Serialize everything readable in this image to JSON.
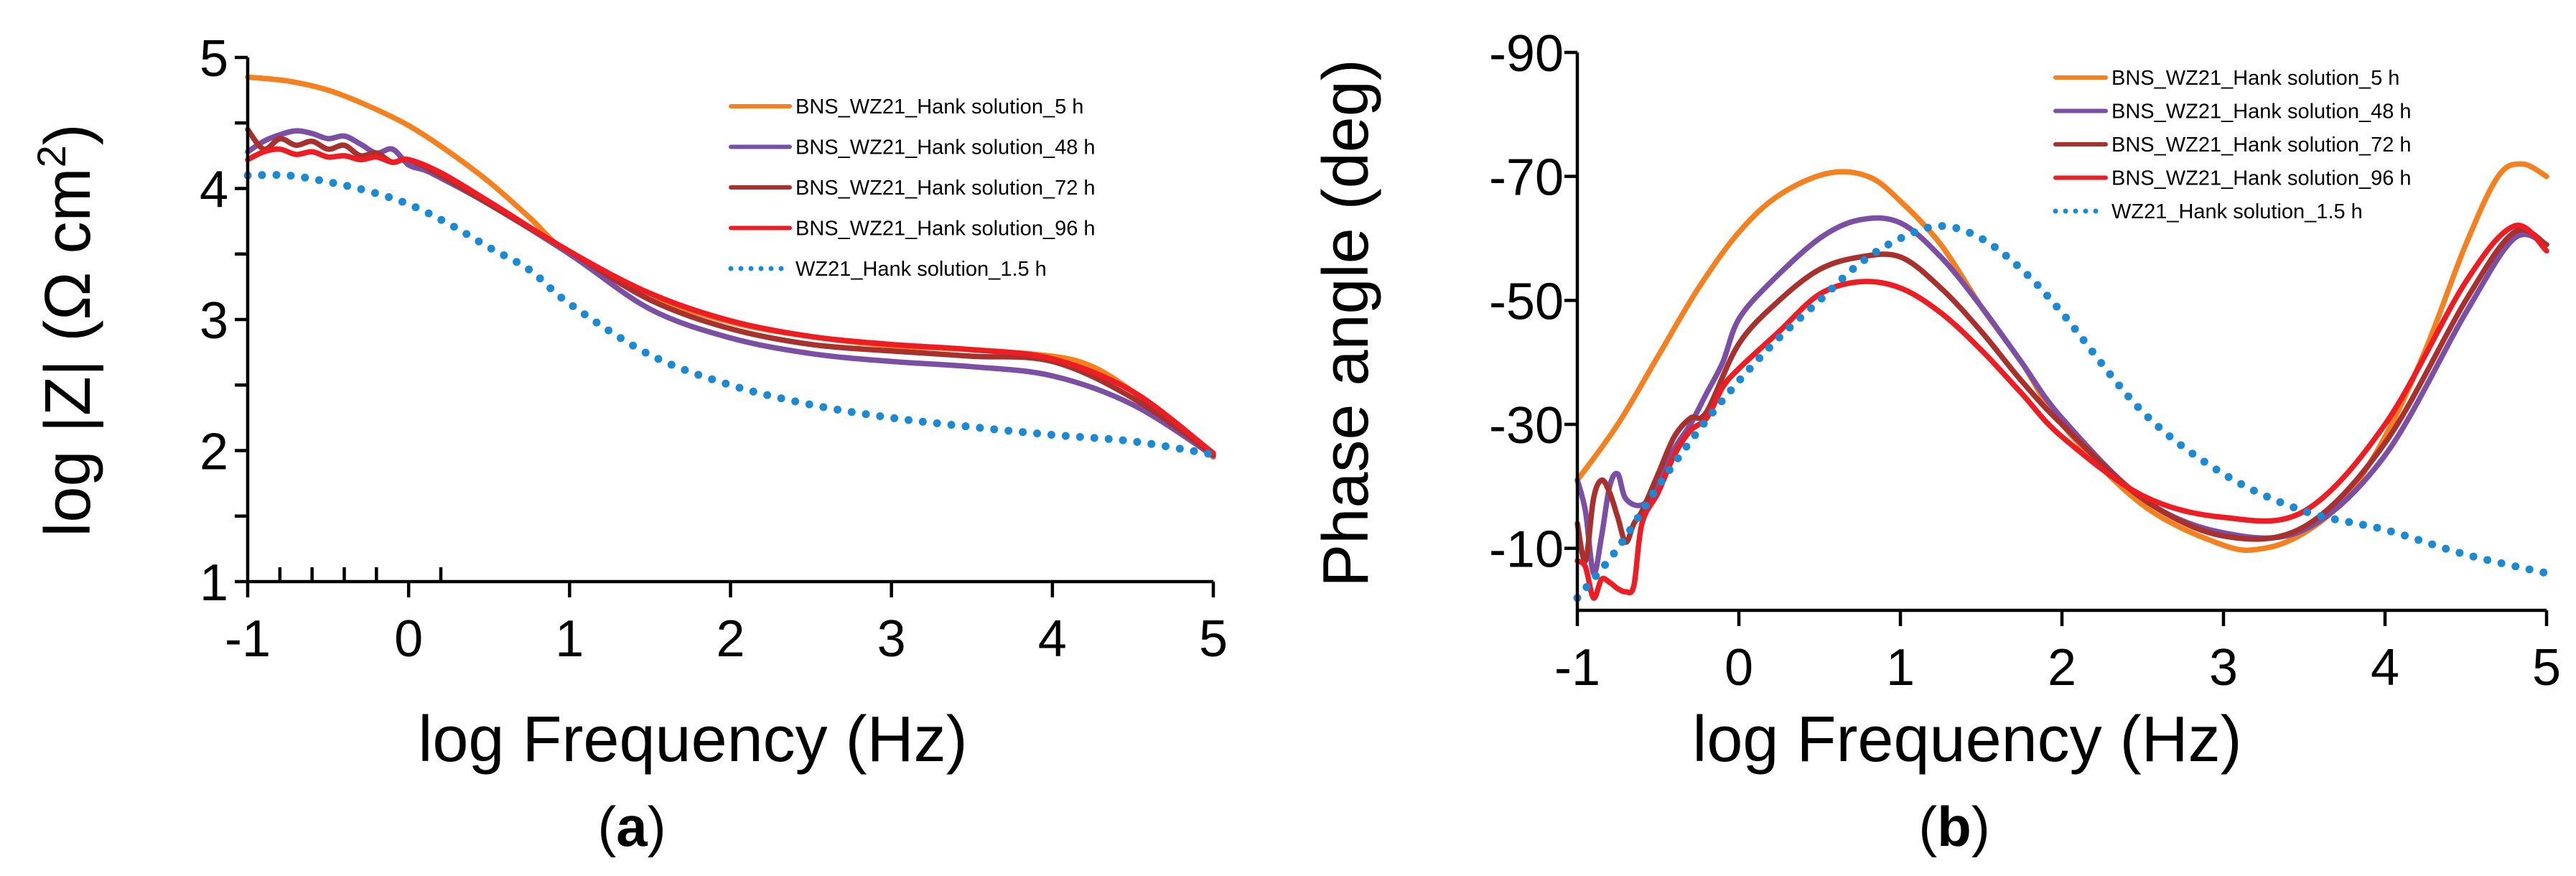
{
  "figure": {
    "panel_labels": [
      {
        "open": "(",
        "letter": "a",
        "close": ")"
      },
      {
        "open": "(",
        "letter": "b",
        "close": ")"
      }
    ]
  },
  "chart_data": [
    {
      "type": "line",
      "xlabel": "log Frequency (Hz)",
      "ylabel": "log |Z| (Ω cm",
      "ylabel_superscript": "2",
      "ylabel_close": ")",
      "xlim": [
        -1,
        5
      ],
      "ylim": [
        1,
        5
      ],
      "xticks": [
        -1,
        0,
        1,
        2,
        3,
        4,
        5
      ],
      "yticks": [
        1,
        2,
        3,
        4,
        5
      ],
      "x_minor_ticks": [
        -0.8,
        -0.6,
        -0.4,
        -0.2,
        0.2
      ],
      "y_minor_ticks": [
        1.5,
        2.5,
        3.5,
        4.5
      ],
      "grid": false,
      "legend_position": "top-right",
      "series": [
        {
          "name": "BNS_WZ21_Hank solution_5 h",
          "color": "#F4801F",
          "dash": "solid",
          "x": [
            -1,
            -0.75,
            -0.5,
            -0.25,
            0,
            0.25,
            0.5,
            0.75,
            1,
            1.5,
            2,
            2.5,
            3,
            3.5,
            4,
            4.25,
            4.5,
            4.75,
            5
          ],
          "y": [
            4.85,
            4.82,
            4.75,
            4.63,
            4.48,
            4.28,
            4.05,
            3.78,
            3.5,
            3.18,
            2.98,
            2.87,
            2.8,
            2.77,
            2.72,
            2.64,
            2.45,
            2.2,
            1.95
          ]
        },
        {
          "name": "BNS_WZ21_Hank solution_48 h",
          "color": "#7B4FA3",
          "dash": "solid",
          "x": [
            -1,
            -0.9,
            -0.8,
            -0.7,
            -0.6,
            -0.5,
            -0.4,
            -0.3,
            -0.2,
            -0.1,
            0,
            0.1,
            0.2,
            0.5,
            1,
            1.5,
            2,
            2.5,
            3,
            3.5,
            4,
            4.5,
            5
          ],
          "y": [
            4.28,
            4.36,
            4.41,
            4.44,
            4.42,
            4.38,
            4.4,
            4.34,
            4.27,
            4.3,
            4.18,
            4.14,
            4.08,
            3.88,
            3.5,
            3.08,
            2.86,
            2.74,
            2.68,
            2.64,
            2.57,
            2.35,
            1.96
          ]
        },
        {
          "name": "BNS_WZ21_Hank solution_72 h",
          "color": "#A8312D",
          "dash": "solid",
          "x": [
            -1,
            -0.9,
            -0.8,
            -0.7,
            -0.6,
            -0.5,
            -0.4,
            -0.3,
            -0.2,
            -0.1,
            0,
            0.2,
            0.5,
            1,
            1.5,
            2,
            2.5,
            3,
            3.5,
            4,
            4.5,
            5
          ],
          "y": [
            4.45,
            4.3,
            4.38,
            4.33,
            4.36,
            4.3,
            4.33,
            4.25,
            4.27,
            4.2,
            4.22,
            4.1,
            3.88,
            3.52,
            3.15,
            2.93,
            2.81,
            2.76,
            2.72,
            2.68,
            2.4,
            1.97
          ]
        },
        {
          "name": "BNS_WZ21_Hank solution_96 h",
          "color": "#EE1C23",
          "dash": "solid",
          "x": [
            -1,
            -0.9,
            -0.8,
            -0.7,
            -0.6,
            -0.5,
            -0.4,
            -0.3,
            -0.2,
            -0.1,
            0,
            0.2,
            0.5,
            1,
            1.5,
            2,
            2.5,
            3,
            3.5,
            4,
            4.5,
            5
          ],
          "y": [
            4.22,
            4.28,
            4.3,
            4.26,
            4.28,
            4.24,
            4.25,
            4.22,
            4.24,
            4.2,
            4.22,
            4.12,
            3.9,
            3.52,
            3.2,
            2.99,
            2.87,
            2.81,
            2.77,
            2.7,
            2.45,
            1.98
          ]
        },
        {
          "name": "WZ21_Hank solution_1.5 h",
          "color": "#1C8AD3",
          "dash": "dotted",
          "x": [
            -1,
            -0.75,
            -0.5,
            -0.25,
            0,
            0.25,
            0.5,
            0.75,
            1,
            1.5,
            2,
            2.5,
            3,
            3.5,
            4,
            4.5,
            5
          ],
          "y": [
            4.1,
            4.1,
            4.05,
            3.98,
            3.88,
            3.73,
            3.55,
            3.38,
            3.12,
            2.73,
            2.5,
            2.35,
            2.25,
            2.18,
            2.12,
            2.07,
            1.97
          ]
        }
      ]
    },
    {
      "type": "line",
      "xlabel": "log Frequency (Hz)",
      "ylabel": "Phase angle (deg)",
      "xlim": [
        -1,
        5
      ],
      "ylim": [
        0,
        -90
      ],
      "xticks": [
        -1,
        0,
        1,
        2,
        3,
        4,
        5
      ],
      "yticks": [
        -10,
        -30,
        -50,
        -70,
        -90
      ],
      "grid": false,
      "legend_position": "top-right",
      "series": [
        {
          "name": "BNS_WZ21_Hank solution_5 h",
          "color": "#F4801F",
          "dash": "solid",
          "x": [
            -1,
            -0.75,
            -0.5,
            -0.25,
            0,
            0.25,
            0.55,
            0.8,
            1,
            1.25,
            1.5,
            1.75,
            2,
            2.5,
            3,
            3.25,
            3.5,
            3.75,
            4,
            4.25,
            4.5,
            4.7,
            4.85,
            5
          ],
          "y": [
            -21,
            -30,
            -41,
            -52,
            -61,
            -67,
            -70.5,
            -70,
            -66,
            -59,
            -49,
            -40,
            -30,
            -17,
            -10.5,
            -10,
            -12.5,
            -18,
            -28,
            -42,
            -59,
            -70,
            -72,
            -70
          ]
        },
        {
          "name": "BNS_WZ21_Hank solution_48 h",
          "color": "#7B4FA3",
          "dash": "solid",
          "x": [
            -1,
            -0.95,
            -0.9,
            -0.85,
            -0.8,
            -0.75,
            -0.7,
            -0.6,
            -0.5,
            -0.4,
            -0.3,
            -0.2,
            -0.1,
            0,
            0.2,
            0.5,
            0.75,
            1,
            1.25,
            1.5,
            1.75,
            2,
            2.5,
            3,
            3.5,
            4,
            4.5,
            4.8,
            5
          ],
          "y": [
            -21,
            -16,
            -6,
            -12,
            -20,
            -22,
            -18,
            -17,
            -20,
            -26,
            -30,
            -35,
            -40,
            -47,
            -53,
            -60,
            -63,
            -62.5,
            -57,
            -49,
            -40,
            -31,
            -18,
            -12.5,
            -13,
            -25,
            -48,
            -60,
            -59
          ]
        },
        {
          "name": "BNS_WZ21_Hank solution_72 h",
          "color": "#A8312D",
          "dash": "solid",
          "x": [
            -1,
            -0.95,
            -0.9,
            -0.85,
            -0.8,
            -0.75,
            -0.7,
            -0.65,
            -0.6,
            -0.5,
            -0.4,
            -0.3,
            -0.2,
            0,
            0.25,
            0.5,
            0.75,
            1,
            1.25,
            1.5,
            1.75,
            2,
            2.5,
            3,
            3.5,
            4,
            4.5,
            4.8,
            5
          ],
          "y": [
            -14,
            -8,
            -18,
            -21,
            -19,
            -15,
            -11,
            -14,
            -16,
            -22,
            -28,
            -31,
            -32,
            -43,
            -50,
            -55,
            -57,
            -57,
            -52,
            -45,
            -37,
            -30,
            -18,
            -12,
            -13.5,
            -27,
            -50,
            -61,
            -59
          ]
        },
        {
          "name": "BNS_WZ21_Hank solution_96 h",
          "color": "#EE1C23",
          "dash": "solid",
          "x": [
            -1,
            -0.95,
            -0.9,
            -0.85,
            -0.8,
            -0.75,
            -0.7,
            -0.65,
            -0.6,
            -0.5,
            -0.4,
            -0.3,
            -0.2,
            -0.1,
            0,
            0.25,
            0.5,
            0.75,
            1,
            1.25,
            1.5,
            1.75,
            2,
            2.5,
            3,
            3.5,
            4,
            4.5,
            4.8,
            5
          ],
          "y": [
            -8,
            -7,
            -2,
            -5,
            -4.5,
            -3.5,
            -3,
            -4,
            -14,
            -19,
            -25,
            -29,
            -31,
            -36,
            -39,
            -45,
            -51,
            -53,
            -52,
            -48,
            -42,
            -35,
            -28,
            -18.5,
            -15,
            -16,
            -30,
            -53,
            -62,
            -58
          ]
        },
        {
          "name": "WZ21_Hank solution_1.5 h",
          "color": "#1C8AD3",
          "dash": "dotted",
          "x": [
            -1,
            -0.75,
            -0.5,
            -0.25,
            0,
            0.25,
            0.5,
            0.75,
            1,
            1.25,
            1.5,
            1.75,
            2,
            2.5,
            3,
            3.5,
            4,
            4.5,
            5
          ],
          "y": [
            -2,
            -10,
            -20,
            -29,
            -37,
            -44,
            -50,
            -56,
            -60,
            -62,
            -60,
            -55,
            -48,
            -32,
            -22,
            -16,
            -13,
            -9,
            -6
          ]
        }
      ]
    }
  ]
}
